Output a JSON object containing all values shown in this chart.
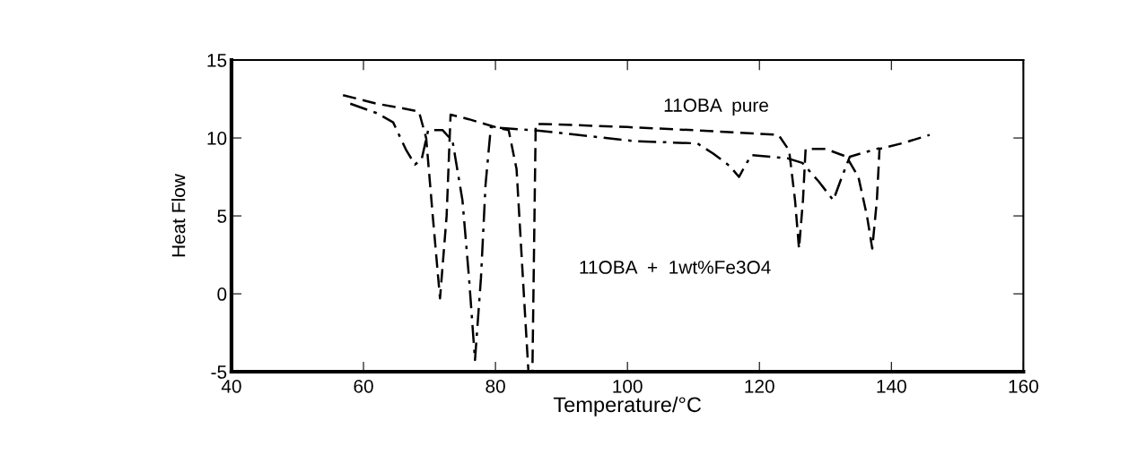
{
  "chart_data": {
    "type": "line",
    "xlabel": "Temperature/°C",
    "ylabel": "Heat Flow",
    "xlim": [
      40,
      160
    ],
    "xticks": [
      40,
      60,
      80,
      100,
      120,
      140,
      160
    ],
    "ylim": [
      -5,
      15
    ],
    "yticks": [
      -5,
      0,
      5,
      10,
      15
    ],
    "grid": false,
    "marker": "none",
    "series": [
      {
        "color": "#000000",
        "line_style": "dashed",
        "x": [
          56.9,
          62,
          66,
          68.4,
          69.5,
          70.5,
          71.6,
          72.6,
          73.2,
          76,
          80,
          82,
          83.2,
          84.3,
          85,
          85.6,
          86.1,
          87.2,
          100,
          110,
          122.9,
          124.5,
          125.4,
          126,
          126.6,
          127,
          130,
          133.2,
          135,
          136.3,
          137.1,
          137.8,
          138.2,
          142,
          145.8
        ],
        "values": [
          12.75,
          12.2,
          11.9,
          11.7,
          10,
          5,
          -0.3,
          5,
          11.5,
          11.2,
          10.7,
          10.5,
          8,
          0,
          -5,
          -5,
          10.9,
          10.9,
          10.7,
          10.5,
          10.2,
          9.2,
          6,
          2.9,
          6,
          9.3,
          9.3,
          8.8,
          7.5,
          5,
          2.9,
          6,
          9.3,
          9.7,
          10.2
        ]
      },
      {
        "color": "#000000",
        "line_style": "dashdot",
        "x": [
          58,
          62,
          64.5,
          66.5,
          67.8,
          68.8,
          69.8,
          72,
          73.5,
          75,
          76,
          76.9,
          77.8,
          78.5,
          79.3,
          87,
          101,
          110.6,
          113,
          115.5,
          116.9,
          117.8,
          118.8,
          124.2,
          126.5,
          129,
          131.2,
          132.5,
          133.7,
          138.2
        ],
        "values": [
          12.2,
          11.6,
          11.0,
          9.2,
          8.3,
          8.6,
          10.5,
          10.5,
          9.8,
          6,
          1,
          -4.25,
          1,
          7,
          10.7,
          10.45,
          9.8,
          9.65,
          9.0,
          8.2,
          7.5,
          8.2,
          8.9,
          8.7,
          8.4,
          7.2,
          6.0,
          7.5,
          8.8,
          9.35
        ]
      }
    ],
    "annotations": [
      "11OBA  pure",
      "11OBA  +  1wt%Fe3O4"
    ]
  }
}
